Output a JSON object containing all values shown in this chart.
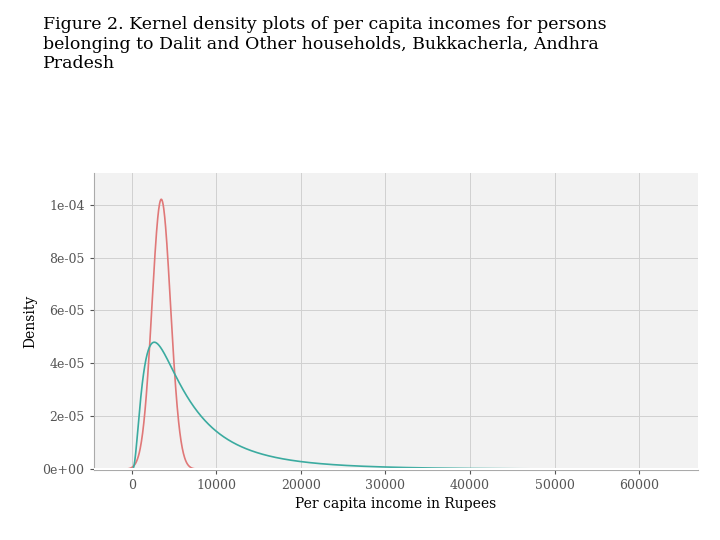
{
  "title": "Figure 2. Kernel density plots of per capita incomes for persons\nbelonging to Dalit and Other households, Bukkacherla, Andhra\nPradesh",
  "xlabel": "Per capita income in Rupees",
  "ylabel": "Density",
  "dalit_color": "#E07878",
  "other_color": "#3BABA0",
  "xlim": [
    -4500,
    67000
  ],
  "ylim": [
    -2e-07,
    0.000112
  ],
  "yticks": [
    0,
    2e-05,
    4e-05,
    6e-05,
    8e-05,
    0.0001
  ],
  "ytick_labels": [
    "0e+00",
    "2e-05",
    "4e-05",
    "6e-05",
    "8e-05",
    "1e-04"
  ],
  "xticks": [
    0,
    10000,
    20000,
    30000,
    40000,
    50000,
    60000
  ],
  "xtick_labels": [
    "0",
    "10000",
    "20000",
    "30000",
    "40000",
    "50000",
    "60000"
  ],
  "grid_color": "#d0d0d0",
  "background_color": "#ffffff",
  "plot_bg_color": "#f2f2f2",
  "title_fontsize": 12.5,
  "axis_fontsize": 10,
  "tick_fontsize": 9
}
